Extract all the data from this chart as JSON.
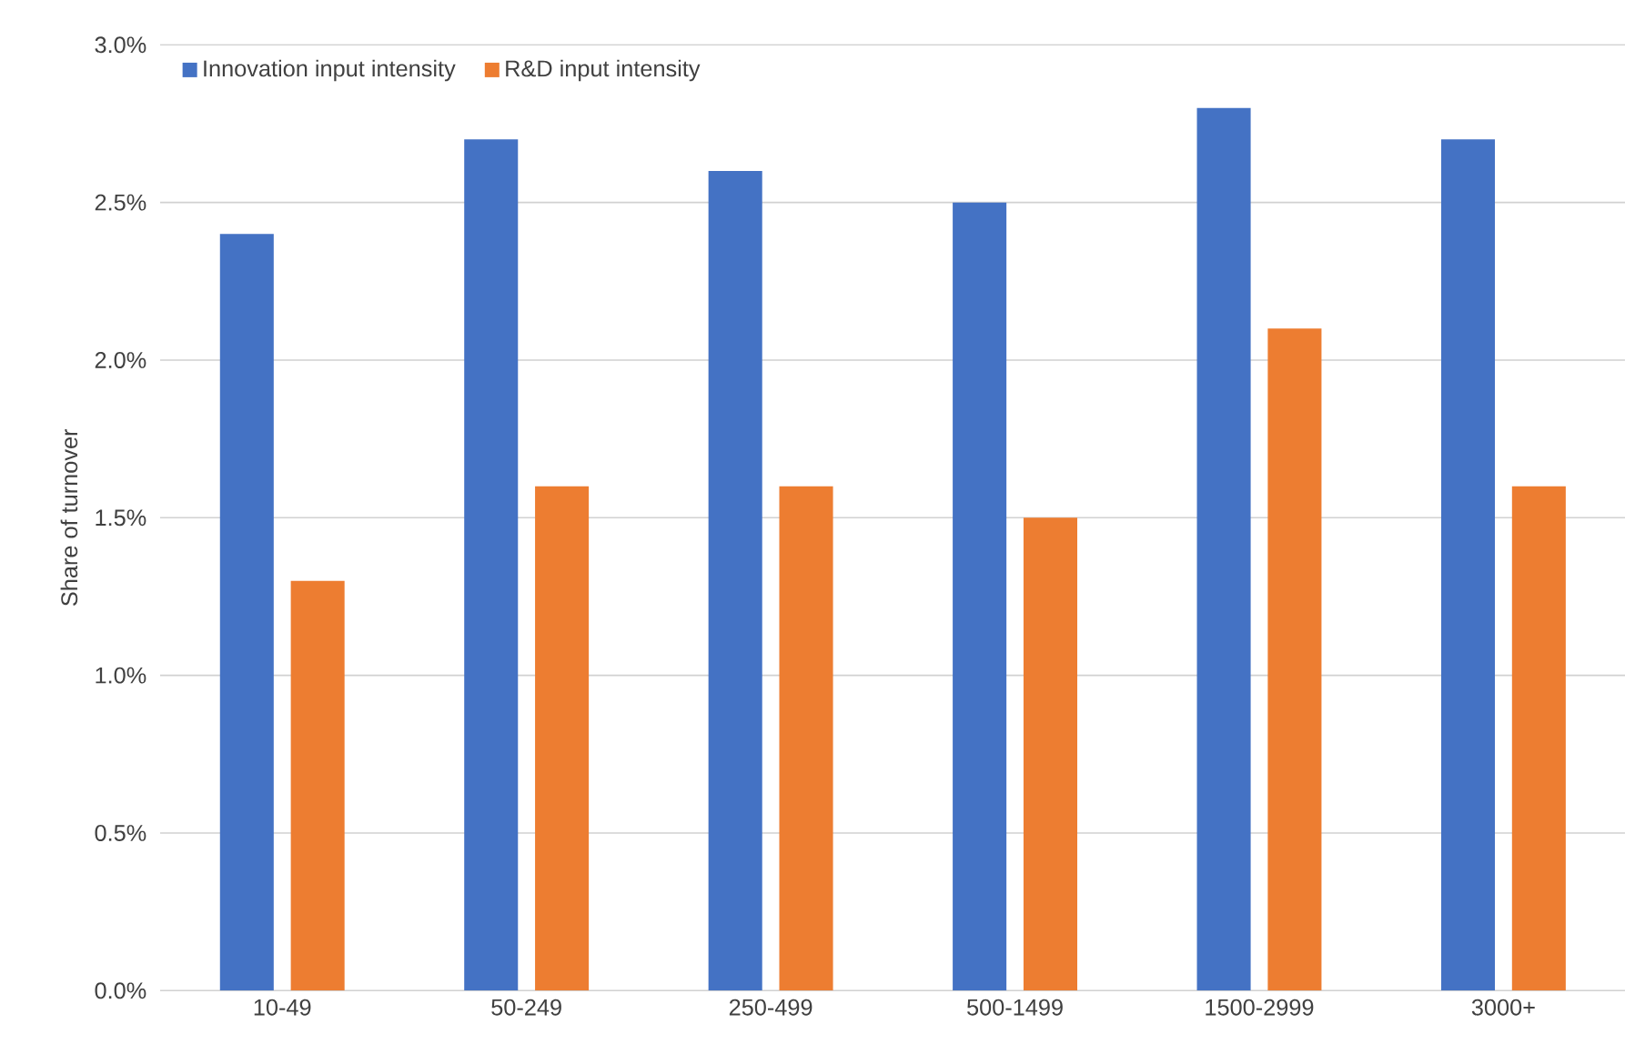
{
  "chart_data": {
    "type": "bar",
    "ylabel": "Share of turnover",
    "categories": [
      "10-49",
      "50-249",
      "250-499",
      "500-1499",
      "1500-2999",
      "3000+"
    ],
    "series": [
      {
        "name": "Innovation input intensity",
        "color": "#4472c4",
        "values": [
          2.4,
          2.7,
          2.6,
          2.5,
          2.8,
          2.7
        ]
      },
      {
        "name": "R&D input intensity",
        "color": "#ed7d31",
        "values": [
          1.3,
          1.6,
          1.6,
          1.5,
          2.1,
          1.6
        ]
      }
    ],
    "ylim": [
      0,
      3
    ],
    "yticks": [
      {
        "value": 0,
        "label": "0.0%"
      },
      {
        "value": 0.5,
        "label": "0.5%"
      },
      {
        "value": 1,
        "label": "1.0%"
      },
      {
        "value": 1.5,
        "label": "1.5%"
      },
      {
        "value": 2,
        "label": "2.0%"
      },
      {
        "value": 2.5,
        "label": "2.5%"
      },
      {
        "value": 3,
        "label": "3.0%"
      }
    ],
    "grid": "y",
    "legend": "top left"
  }
}
